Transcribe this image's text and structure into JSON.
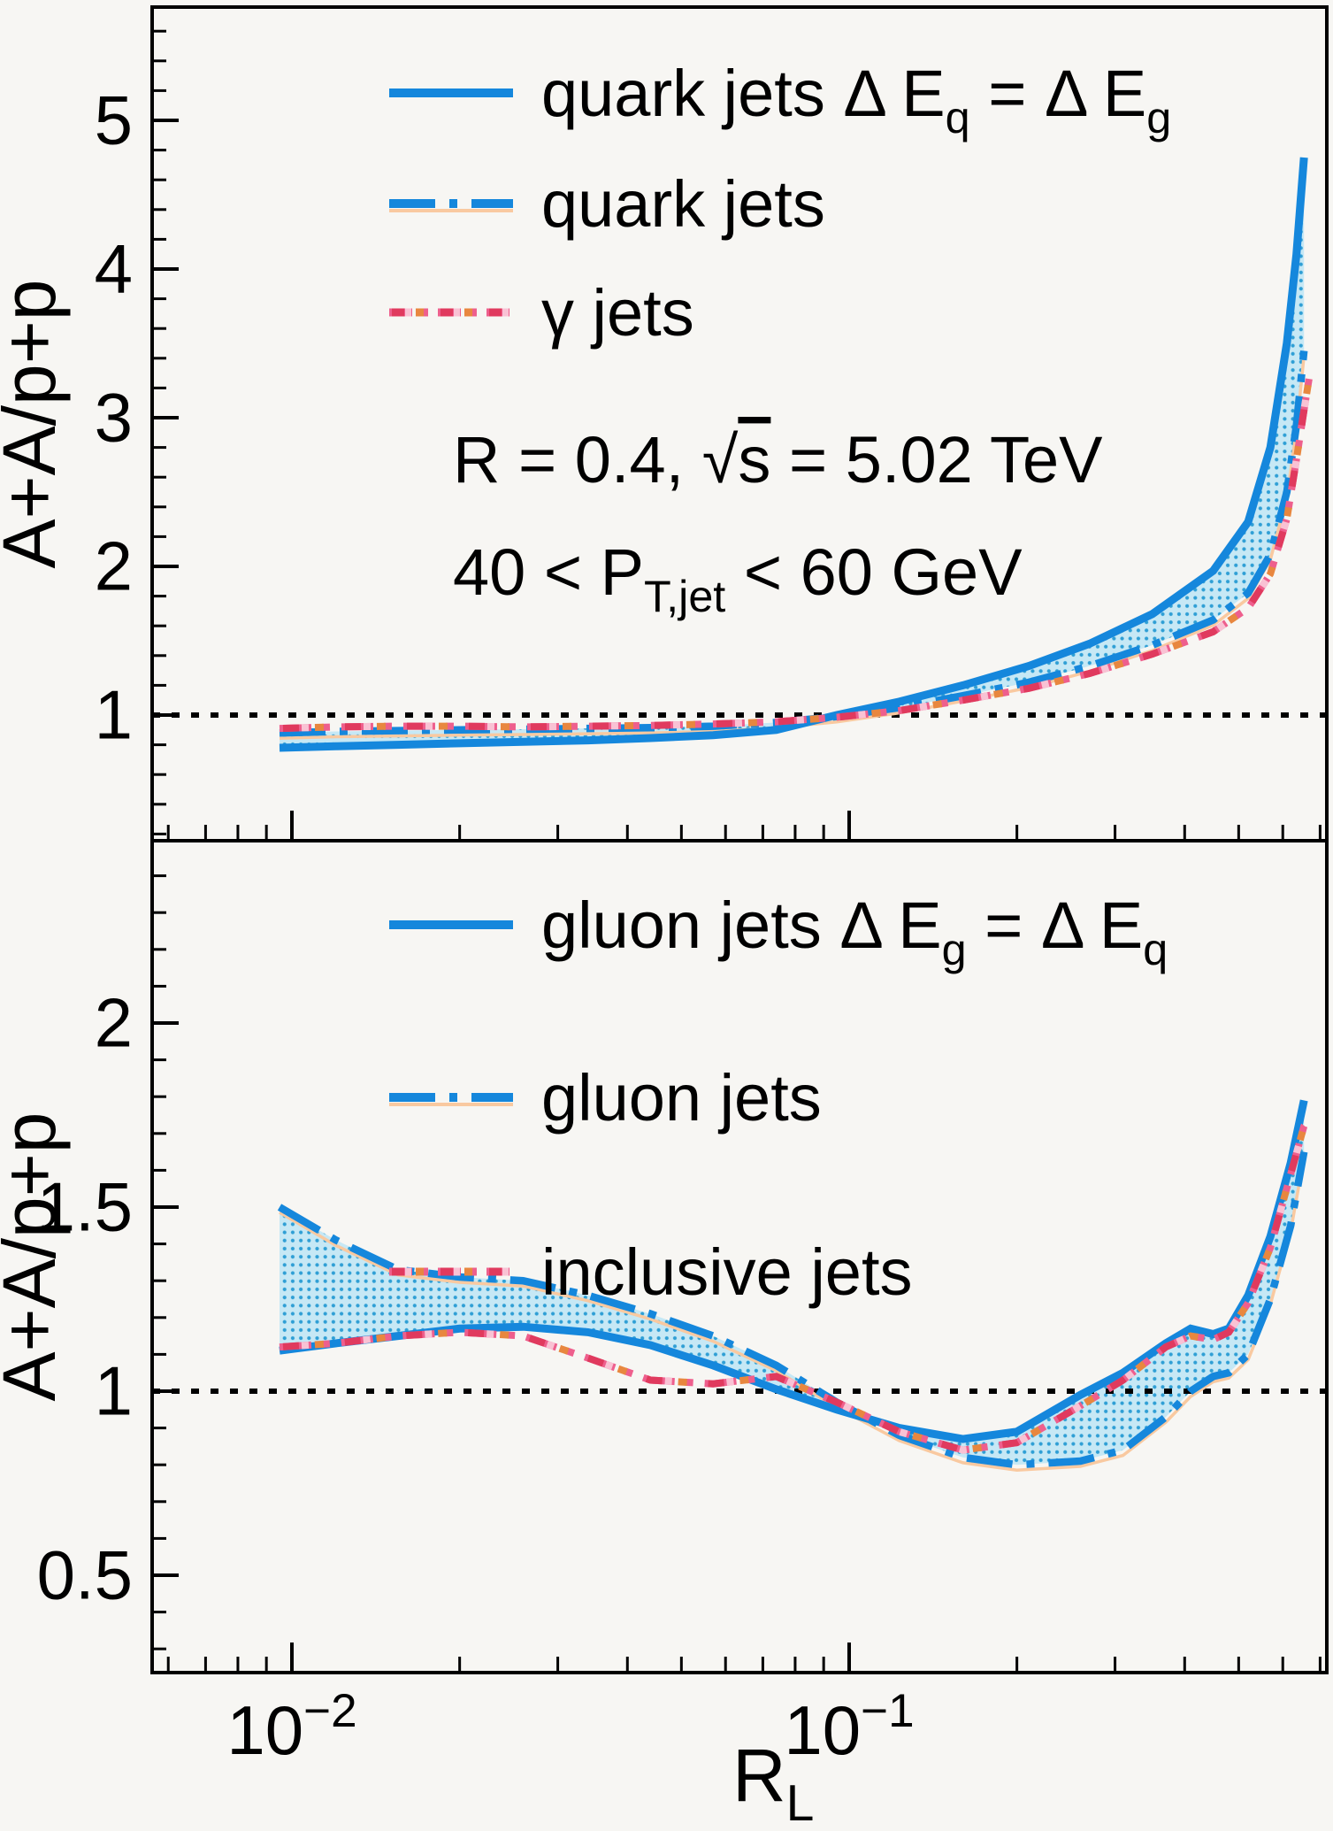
{
  "figure": {
    "description": "Two-panel ROOT-style ratio plot A+A/p+p vs R_L",
    "colors": {
      "background": "#f7f6f3",
      "frame": "#000000",
      "blue": "#1587dc",
      "band_fill": "#c6e8f5",
      "band_dot": "#2f9fd5",
      "pink": "#ee5f8d",
      "crimson": "#e03a5e",
      "orange": "#e8873f",
      "pale_pink": "#f9c2d4",
      "peach": "#f9c9a0",
      "reference_line": "#000000"
    }
  },
  "axes": {
    "y_label": "A+A/p+p",
    "x_label_plain": "R_L",
    "x_label_segments": [
      {
        "t": "R"
      },
      {
        "t": "L",
        "style": "sub"
      }
    ],
    "x_tick_labels": [
      {
        "plain": "10^-2",
        "segments": [
          {
            "t": "10"
          },
          {
            "t": "−2",
            "style": "sup"
          }
        ],
        "value": 0.01
      },
      {
        "plain": "10^-1",
        "segments": [
          {
            "t": "10"
          },
          {
            "t": "−1",
            "style": "sup"
          }
        ],
        "value": 0.1
      }
    ]
  },
  "chart_data": [
    {
      "panel": "top",
      "type": "line",
      "xscale": "log",
      "xlim": [
        0.0056,
        0.72
      ],
      "ylim": [
        0.15,
        5.76
      ],
      "yticks": [
        1,
        2,
        3,
        4,
        5
      ],
      "ytick_labels": [
        "1",
        "2",
        "3",
        "4",
        "5"
      ],
      "y_minor_step": 0.2,
      "xticks": [
        0.01,
        0.1
      ],
      "ylabel": "A+A/p+p",
      "reference_line_y": 1,
      "legend_position": "top-left-inside",
      "annotations": [
        {
          "plain": "R = 0.4, sqrt(s) = 5.02 TeV",
          "segments": [
            {
              "t": "R = 0.4,  "
            },
            {
              "t": "√"
            },
            {
              "t": "s",
              "style": "overline"
            },
            {
              "t": " = 5.02 TeV"
            }
          ]
        },
        {
          "plain": "40 < P_T,jet < 60 GeV",
          "segments": [
            {
              "t": "40 < P"
            },
            {
              "t": "T,jet",
              "style": "sub"
            },
            {
              "t": " < 60 GeV"
            }
          ]
        }
      ],
      "band_between": [
        "quark jets dEq=dEg",
        "quark jets"
      ],
      "series": [
        {
          "name": "quark jets dEq=dEg",
          "legend_plain": "quark jets  ΔE_q = ΔE_g",
          "legend_segments": [
            {
              "t": "quark jets  "
            },
            {
              "t": "Δ"
            },
            {
              "t": " E"
            },
            {
              "t": "q",
              "style": "sub"
            },
            {
              "t": " = "
            },
            {
              "t": "Δ"
            },
            {
              "t": " E"
            },
            {
              "t": "g",
              "style": "sub"
            }
          ],
          "style": "solid-blue",
          "x": [
            0.0095,
            0.012,
            0.0155,
            0.02,
            0.026,
            0.034,
            0.044,
            0.057,
            0.074,
            0.095,
            0.123,
            0.16,
            0.21,
            0.27,
            0.35,
            0.45,
            0.52,
            0.57,
            0.61,
            0.635,
            0.655
          ],
          "y": [
            0.78,
            0.79,
            0.8,
            0.81,
            0.82,
            0.83,
            0.845,
            0.865,
            0.9,
            1.0,
            1.09,
            1.2,
            1.33,
            1.48,
            1.68,
            1.97,
            2.3,
            2.8,
            3.5,
            4.1,
            4.75
          ]
        },
        {
          "name": "quark jets",
          "legend_plain": "quark jets",
          "legend_segments": [
            {
              "t": "quark jets"
            }
          ],
          "style": "dashed-blue",
          "x": [
            0.0095,
            0.012,
            0.0155,
            0.02,
            0.026,
            0.034,
            0.044,
            0.057,
            0.074,
            0.095,
            0.123,
            0.16,
            0.21,
            0.27,
            0.35,
            0.45,
            0.52,
            0.57,
            0.61,
            0.635,
            0.655
          ],
          "y": [
            0.88,
            0.89,
            0.895,
            0.9,
            0.905,
            0.91,
            0.915,
            0.925,
            0.95,
            0.99,
            1.05,
            1.13,
            1.22,
            1.33,
            1.47,
            1.64,
            1.82,
            2.08,
            2.5,
            2.95,
            3.45
          ]
        },
        {
          "name": "gamma jets",
          "legend_plain": "γ jets",
          "legend_segments": [
            {
              "t": "γ"
            },
            {
              "t": " jets"
            }
          ],
          "style": "dashdot-pink",
          "x": [
            0.0095,
            0.012,
            0.0155,
            0.02,
            0.026,
            0.034,
            0.044,
            0.057,
            0.074,
            0.095,
            0.123,
            0.16,
            0.21,
            0.27,
            0.35,
            0.45,
            0.52,
            0.57,
            0.61,
            0.635,
            0.655,
            0.67
          ],
          "y": [
            0.91,
            0.92,
            0.925,
            0.925,
            0.92,
            0.925,
            0.93,
            0.94,
            0.955,
            0.985,
            1.03,
            1.1,
            1.18,
            1.28,
            1.41,
            1.56,
            1.72,
            1.95,
            2.32,
            2.72,
            3.05,
            3.28
          ]
        }
      ]
    },
    {
      "panel": "bottom",
      "type": "line",
      "xscale": "log",
      "xlim": [
        0.0056,
        0.72
      ],
      "ylim": [
        0.235,
        2.495
      ],
      "yticks": [
        0.5,
        1,
        1.5,
        2
      ],
      "ytick_labels": [
        "0.5",
        "1",
        "1.5",
        "2"
      ],
      "y_minor_step": 0.1,
      "xticks": [
        0.01,
        0.1
      ],
      "ylabel": "A+A/p+p",
      "xlabel_plain": "R_L",
      "reference_line_y": 1,
      "legend_position": "top-left-inside",
      "annotations": [],
      "band_between": [
        "gluon jets dEg=dEq",
        "gluon jets"
      ],
      "series": [
        {
          "name": "gluon jets dEg=dEq",
          "legend_plain": "gluon jets ΔE_g = ΔE_q",
          "legend_segments": [
            {
              "t": "gluon jets "
            },
            {
              "t": "Δ"
            },
            {
              "t": " E"
            },
            {
              "t": "g",
              "style": "sub"
            },
            {
              "t": " = "
            },
            {
              "t": "Δ"
            },
            {
              "t": " E"
            },
            {
              "t": "q",
              "style": "sub"
            }
          ],
          "style": "solid-blue",
          "x": [
            0.0095,
            0.012,
            0.0155,
            0.02,
            0.026,
            0.034,
            0.044,
            0.057,
            0.074,
            0.095,
            0.123,
            0.16,
            0.2,
            0.26,
            0.31,
            0.37,
            0.41,
            0.45,
            0.48,
            0.52,
            0.57,
            0.62,
            0.655
          ],
          "y": [
            1.11,
            1.13,
            1.15,
            1.17,
            1.175,
            1.16,
            1.125,
            1.07,
            1.005,
            0.95,
            0.9,
            0.87,
            0.89,
            0.99,
            1.05,
            1.13,
            1.17,
            1.155,
            1.17,
            1.26,
            1.42,
            1.62,
            1.79
          ]
        },
        {
          "name": "gluon jets",
          "legend_plain": "gluon jets",
          "legend_segments": [
            {
              "t": "gluon jets"
            }
          ],
          "style": "dashed-blue",
          "x": [
            0.0095,
            0.012,
            0.0155,
            0.02,
            0.026,
            0.034,
            0.044,
            0.057,
            0.074,
            0.095,
            0.123,
            0.16,
            0.2,
            0.26,
            0.31,
            0.37,
            0.41,
            0.45,
            0.48,
            0.52,
            0.57,
            0.62,
            0.655
          ],
          "y": [
            1.5,
            1.41,
            1.33,
            1.31,
            1.3,
            1.26,
            1.21,
            1.15,
            1.07,
            0.97,
            0.88,
            0.82,
            0.8,
            0.81,
            0.84,
            0.93,
            1.0,
            1.04,
            1.05,
            1.1,
            1.25,
            1.45,
            1.65
          ]
        },
        {
          "name": "inclusive jets",
          "legend_plain": "inclusive jets",
          "legend_segments": [
            {
              "t": "inclusive jets"
            }
          ],
          "style": "dashdot-pink",
          "x": [
            0.0095,
            0.012,
            0.0155,
            0.02,
            0.026,
            0.034,
            0.044,
            0.057,
            0.074,
            0.095,
            0.123,
            0.16,
            0.2,
            0.26,
            0.31,
            0.37,
            0.41,
            0.45,
            0.48,
            0.52,
            0.57,
            0.62,
            0.655,
            0.67
          ],
          "y": [
            1.12,
            1.13,
            1.15,
            1.16,
            1.15,
            1.09,
            1.03,
            1.02,
            1.04,
            0.97,
            0.89,
            0.84,
            0.86,
            0.96,
            1.03,
            1.12,
            1.15,
            1.14,
            1.16,
            1.24,
            1.39,
            1.59,
            1.72,
            1.74
          ]
        }
      ]
    }
  ]
}
